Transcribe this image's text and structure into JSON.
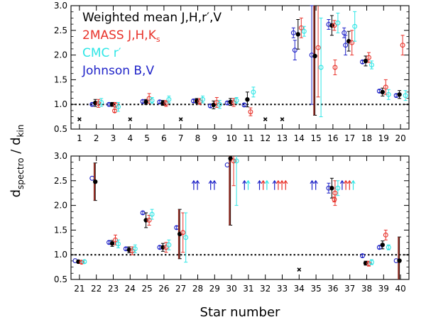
{
  "chart_data": {
    "type": "scatter",
    "title": "",
    "xlabel": "Star number",
    "ylabel": {
      "main": "d",
      "num_sub": "spectro",
      "sep": " / ",
      "den_main": "d",
      "den_sub": "kin"
    },
    "legend": {
      "placement": "top-left of upper panel",
      "entries": [
        {
          "series": "weighted",
          "text": "Weighted mean J,H,r′,V",
          "color": "#000000"
        },
        {
          "series": "2mass",
          "text": "2MASS J,H,K",
          "sub": "s",
          "color": "#e8322a"
        },
        {
          "series": "cmc",
          "text": "CMC r′",
          "color": "#2ee6e6"
        },
        {
          "series": "johnson",
          "text": "Johnson B,V",
          "color": "#1f23c8"
        }
      ]
    },
    "colors": {
      "weighted": "#000000",
      "2mass": "#e8322a",
      "cmc": "#2ee6e6",
      "johnson": "#1f23c8",
      "weighted_bar": "#8c2b22"
    },
    "reference_line": 1.0,
    "panels": [
      {
        "name": "upper",
        "ylim": [
          0.5,
          3.0
        ],
        "yticks": [
          "0.5",
          "1.0",
          "1.5",
          "2.0",
          "2.5",
          "3.0"
        ],
        "stars": [
          {
            "n": "1",
            "x_only": 0.7
          },
          {
            "n": "2",
            "johnson": [
              1.0,
              0.03
            ],
            "twomass": [
              1.02,
              0.08
            ],
            "cmc": [
              1.04,
              0.08
            ],
            "weighted": [
              1.03,
              0.07
            ]
          },
          {
            "n": "3",
            "johnson": [
              1.0,
              0.03
            ],
            "twomass": [
              0.99,
              0.05
            ],
            "cmc": [
              0.95,
              0.09
            ],
            "weighted": [
              1.0,
              0.04
            ],
            "twomass2": [
              0.87,
              0.03
            ]
          },
          {
            "n": "4",
            "x_only": 0.7
          },
          {
            "n": "5",
            "johnson": [
              1.06,
              0.03
            ],
            "twomass": [
              1.12,
              0.1
            ],
            "cmc": [
              1.08,
              0.06
            ],
            "weighted": [
              1.05,
              0.05
            ]
          },
          {
            "n": "6",
            "johnson": [
              1.05,
              0.03
            ],
            "twomass": [
              1.02,
              0.06
            ],
            "cmc": [
              1.1,
              0.07
            ],
            "weighted": [
              1.03,
              0.05
            ]
          },
          {
            "n": "7",
            "x_only": 0.7
          },
          {
            "n": "8",
            "johnson": [
              1.07,
              0.03
            ],
            "twomass": [
              1.06,
              0.06
            ],
            "cmc": [
              1.1,
              0.07
            ],
            "weighted": [
              1.07,
              0.05
            ]
          },
          {
            "n": "9",
            "johnson": [
              0.97,
              0.03
            ],
            "twomass": [
              1.04,
              0.1
            ],
            "cmc": [
              1.0,
              0.08
            ],
            "weighted": [
              0.99,
              0.08
            ]
          },
          {
            "n": "10",
            "johnson": [
              1.03,
              0.03
            ],
            "twomass": [
              1.04,
              0.08
            ],
            "cmc": [
              1.08,
              0.06
            ],
            "weighted": [
              1.05,
              0.07
            ]
          },
          {
            "n": "11",
            "johnson": [
              0.99,
              0.03
            ],
            "twomass": [
              0.85,
              0.08
            ],
            "cmc": [
              1.25,
              0.1
            ],
            "weighted": [
              1.1,
              0.15
            ]
          },
          {
            "n": "12",
            "x_only": 0.7
          },
          {
            "n": "13",
            "x_only": 0.7
          },
          {
            "n": "14",
            "johnson": [
              2.1,
              0.2
            ],
            "twomass": [
              2.55,
              0.2
            ],
            "cmc": [
              2.48,
              0.1
            ],
            "weighted": [
              2.42,
              0.3
            ],
            "johnson2": [
              2.45,
              0.1
            ]
          },
          {
            "n": "15",
            "johnson": [
              2.0,
              1.0
            ],
            "twomass": [
              2.15,
              1.0
            ],
            "cmc": [
              1.75,
              1.0
            ],
            "weighted": [
              1.98,
              1.2
            ]
          },
          {
            "n": "16",
            "johnson": [
              2.62,
              0.1
            ],
            "twomass": [
              1.75,
              0.15
            ],
            "cmc": [
              2.65,
              0.2
            ],
            "weighted": [
              2.6,
              0.2
            ],
            "twomass2": [
              2.6,
              0.1
            ]
          },
          {
            "n": "17",
            "johnson": [
              2.2,
              0.2
            ],
            "twomass": [
              2.25,
              0.25
            ],
            "cmc": [
              2.58,
              0.3
            ],
            "weighted": [
              2.28,
              0.2
            ],
            "johnson2": [
              2.45,
              0.1
            ]
          },
          {
            "n": "18",
            "johnson": [
              1.86,
              0.03
            ],
            "twomass": [
              1.95,
              0.1
            ],
            "cmc": [
              1.8,
              0.08
            ],
            "weighted": [
              1.88,
              0.1
            ]
          },
          {
            "n": "19",
            "johnson": [
              1.27,
              0.03
            ],
            "twomass": [
              1.35,
              0.15
            ],
            "cmc": [
              1.2,
              0.1
            ],
            "weighted": [
              1.25,
              0.08
            ]
          },
          {
            "n": "20",
            "johnson": [
              1.18,
              0.03
            ],
            "twomass": [
              2.2,
              0.2
            ],
            "cmc": [
              1.18,
              0.1
            ],
            "weighted": [
              1.2,
              0.08
            ]
          }
        ]
      },
      {
        "name": "lower",
        "ylim": [
          0.5,
          3.0
        ],
        "yticks": [
          "0.5",
          "1.0",
          "1.5",
          "2.0",
          "2.5",
          "3.0"
        ],
        "stars": [
          {
            "n": "21",
            "johnson": [
              0.88,
              0.02
            ],
            "twomass": [
              0.85,
              0.03
            ],
            "cmc": [
              0.86,
              0.03
            ],
            "weighted": [
              0.86,
              0.03
            ]
          },
          {
            "n": "22",
            "johnson": [
              2.55,
              0.02
            ],
            "weighted": [
              2.48,
              0.38
            ]
          },
          {
            "n": "23",
            "johnson": [
              1.25,
              0.03
            ],
            "twomass": [
              1.3,
              0.1
            ],
            "cmc": [
              1.22,
              0.08
            ],
            "weighted": [
              1.23,
              0.06
            ]
          },
          {
            "n": "24",
            "johnson": [
              1.12,
              0.03
            ],
            "twomass": [
              1.08,
              0.08
            ],
            "cmc": [
              1.12,
              0.08
            ],
            "weighted": [
              1.1,
              0.06
            ]
          },
          {
            "n": "25",
            "johnson": [
              1.85,
              0.03
            ],
            "twomass": [
              1.7,
              0.1
            ],
            "cmc": [
              1.82,
              0.1
            ],
            "weighted": [
              1.7,
              0.15
            ]
          },
          {
            "n": "26",
            "johnson": [
              1.15,
              0.03
            ],
            "twomass": [
              1.15,
              0.1
            ],
            "cmc": [
              1.2,
              0.1
            ],
            "weighted": [
              1.15,
              0.08
            ]
          },
          {
            "n": "27",
            "johnson": [
              1.55,
              0.03
            ],
            "twomass": [
              1.45,
              0.4
            ],
            "cmc": [
              1.35,
              0.5
            ],
            "weighted": [
              1.42,
              0.5
            ]
          },
          {
            "n": "28",
            "arrows": [
              "johnson",
              "johnson"
            ]
          },
          {
            "n": "29",
            "arrows": [
              "johnson",
              "johnson"
            ]
          },
          {
            "n": "30",
            "johnson": [
              2.82,
              0.02
            ],
            "twomass": [
              2.9,
              0.5
            ],
            "cmc": [
              2.9,
              0.9
            ],
            "weighted": [
              2.95,
              1.35
            ]
          },
          {
            "n": "31",
            "arrows": [
              "johnson",
              "cmc"
            ]
          },
          {
            "n": "32",
            "arrows": [
              "johnson",
              "twomass",
              "cmc"
            ]
          },
          {
            "n": "33",
            "arrows": [
              "johnson",
              "2mass",
              "2mass",
              "2mass"
            ]
          },
          {
            "n": "34",
            "x_only": 0.7
          },
          {
            "n": "35",
            "arrows": [
              "johnson",
              "johnson"
            ]
          },
          {
            "n": "36",
            "johnson": [
              2.35,
              0.1
            ],
            "twomass": [
              2.25,
              0.25
            ],
            "cmc": [
              2.35,
              0.15
            ],
            "weighted": [
              2.35,
              0.2
            ],
            "twomass2": [
              2.12,
              0.05
            ]
          },
          {
            "n": "37",
            "arrows": [
              "johnson",
              "2mass",
              "2mass",
              "cmc"
            ]
          },
          {
            "n": "38",
            "johnson": [
              0.98,
              0.03
            ],
            "twomass": [
              0.82,
              0.05
            ],
            "cmc": [
              0.85,
              0.05
            ],
            "weighted": [
              0.83,
              0.04
            ]
          },
          {
            "n": "39",
            "johnson": [
              1.15,
              0.03
            ],
            "twomass": [
              1.4,
              0.1
            ],
            "cmc": [
              1.15,
              0.05
            ],
            "weighted": [
              1.2,
              0.08
            ]
          },
          {
            "n": "40",
            "johnson": [
              0.88,
              0.02
            ],
            "weighted": [
              0.88,
              0.48
            ]
          }
        ]
      }
    ]
  }
}
